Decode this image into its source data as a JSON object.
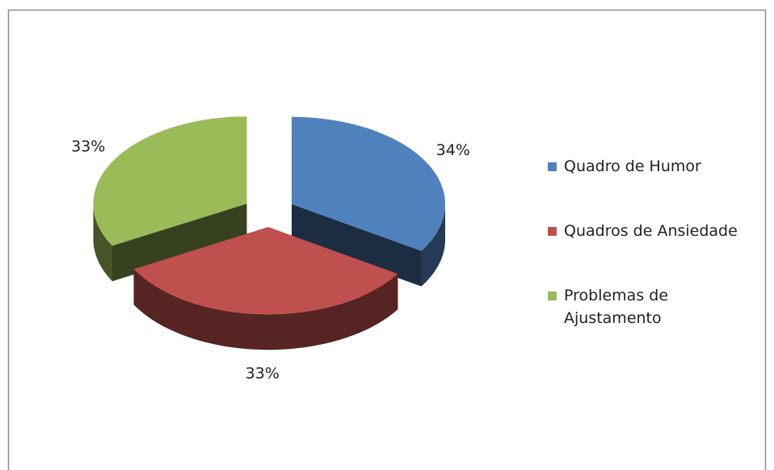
{
  "chart_data": {
    "type": "pie",
    "categories": [
      "Quadro de Humor",
      "Quadros de Ansiedade",
      "Problemas de Ajustamento"
    ],
    "values": [
      34,
      33,
      33
    ],
    "value_labels": [
      "34%",
      "33%",
      "33%"
    ],
    "colors": [
      "#4f81bd",
      "#c0504d",
      "#9bbb59"
    ],
    "legend": "right"
  }
}
